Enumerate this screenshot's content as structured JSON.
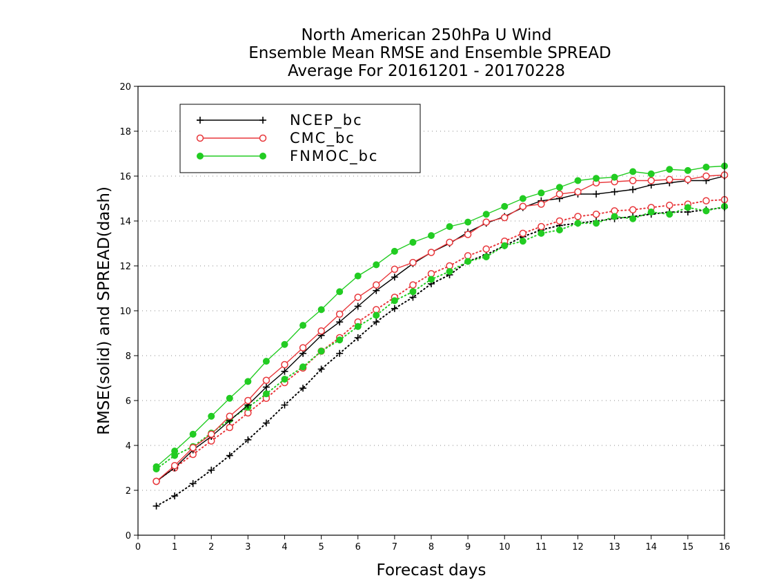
{
  "chart_data": {
    "type": "line",
    "title": [
      "North American 250hPa U Wind",
      "Ensemble Mean RMSE and Ensemble SPREAD",
      "Average For 20161201 - 20170228"
    ],
    "xlabel": "Forecast days",
    "ylabel": "RMSE(solid) and SPREAD(dash)",
    "xlim": [
      0,
      16
    ],
    "ylim": [
      0,
      20
    ],
    "xticks": [
      0,
      1,
      2,
      3,
      4,
      5,
      6,
      7,
      8,
      9,
      10,
      11,
      12,
      13,
      14,
      15,
      16
    ],
    "yticks": [
      0,
      2,
      4,
      6,
      8,
      10,
      12,
      14,
      16,
      18,
      20
    ],
    "grid": "horizontal dotted",
    "legend_position": "top-left",
    "x": [
      0.5,
      1,
      1.5,
      2,
      2.5,
      3,
      3.5,
      4,
      4.5,
      5,
      5.5,
      6,
      6.5,
      7,
      7.5,
      8,
      8.5,
      9,
      9.5,
      10,
      10.5,
      11,
      11.5,
      12,
      12.5,
      13,
      13.5,
      14,
      14.5,
      15,
      15.5,
      16
    ],
    "series": [
      {
        "name": "NCEP_bc",
        "color": "#000000",
        "marker": "plus",
        "rmse": [
          2.4,
          3.0,
          3.8,
          4.4,
          5.1,
          5.8,
          6.6,
          7.3,
          8.1,
          8.9,
          9.5,
          10.2,
          10.9,
          11.5,
          12.1,
          12.6,
          13.0,
          13.5,
          13.9,
          14.2,
          14.6,
          14.9,
          15.0,
          15.2,
          15.2,
          15.3,
          15.4,
          15.6,
          15.7,
          15.8,
          15.8,
          16.0
        ],
        "spread": [
          1.3,
          1.75,
          2.3,
          2.9,
          3.55,
          4.25,
          5.0,
          5.8,
          6.55,
          7.4,
          8.1,
          8.8,
          9.5,
          10.1,
          10.6,
          11.2,
          11.6,
          12.2,
          12.5,
          12.9,
          13.3,
          13.6,
          13.8,
          13.9,
          14.0,
          14.1,
          14.2,
          14.3,
          14.4,
          14.4,
          14.5,
          14.6
        ]
      },
      {
        "name": "CMC_bc",
        "color": "#e8363a",
        "marker": "open-circle",
        "rmse": [
          2.4,
          3.1,
          3.9,
          4.5,
          5.3,
          6.0,
          6.9,
          7.6,
          8.35,
          9.1,
          9.85,
          10.6,
          11.15,
          11.85,
          12.15,
          12.6,
          13.05,
          13.4,
          13.95,
          14.15,
          14.65,
          14.75,
          15.2,
          15.3,
          15.7,
          15.75,
          15.8,
          15.8,
          15.85,
          15.85,
          16.0,
          16.05
        ],
        "spread": [
          2.4,
          3.0,
          3.6,
          4.2,
          4.8,
          5.45,
          6.1,
          6.8,
          7.45,
          8.2,
          8.8,
          9.5,
          10.05,
          10.6,
          11.15,
          11.65,
          12.0,
          12.45,
          12.75,
          13.1,
          13.45,
          13.75,
          14.0,
          14.2,
          14.3,
          14.45,
          14.5,
          14.6,
          14.7,
          14.75,
          14.9,
          14.95
        ]
      },
      {
        "name": "FNMOC_bc",
        "color": "#22cc22",
        "marker": "filled-circle",
        "rmse": [
          3.05,
          3.75,
          4.5,
          5.3,
          6.1,
          6.85,
          7.75,
          8.5,
          9.35,
          10.05,
          10.85,
          11.55,
          12.05,
          12.65,
          13.05,
          13.35,
          13.75,
          13.95,
          14.3,
          14.65,
          15.0,
          15.25,
          15.5,
          15.8,
          15.9,
          15.95,
          16.2,
          16.1,
          16.3,
          16.25,
          16.4,
          16.45
        ],
        "spread": [
          2.95,
          3.55,
          3.95,
          4.55,
          5.15,
          5.7,
          6.3,
          6.95,
          7.5,
          8.2,
          8.7,
          9.3,
          9.8,
          10.45,
          10.85,
          11.4,
          11.75,
          12.2,
          12.4,
          12.9,
          13.1,
          13.45,
          13.6,
          13.9,
          13.9,
          14.2,
          14.1,
          14.4,
          14.3,
          14.6,
          14.45,
          14.65
        ]
      }
    ]
  }
}
